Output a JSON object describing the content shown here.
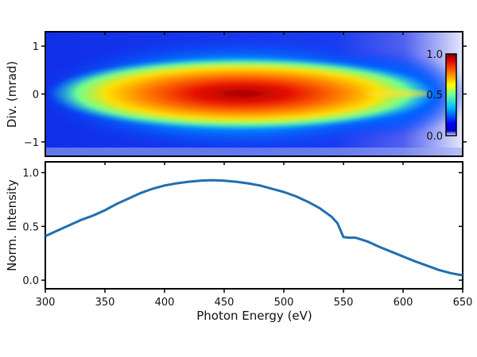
{
  "chart_data": [
    {
      "type": "heatmap",
      "title": "",
      "xlabel": "",
      "ylabel": "Div. (mrad)",
      "xlim": [
        300,
        650
      ],
      "ylim": [
        -1.3,
        1.3
      ],
      "yticks": [
        1,
        0,
        -1
      ],
      "ytick_labels": [
        "1",
        "0",
        "−1"
      ],
      "colormap": "jet",
      "colorbar": {
        "range": [
          0.0,
          1.0
        ],
        "ticks": [
          "1.0",
          "0.5",
          "0.0"
        ],
        "placement": "inside-right"
      },
      "description_values": {
        "peak_energy_eV": 440,
        "edge_energy_eV": 545
      }
    },
    {
      "type": "line",
      "title": "",
      "xlabel": "Photon Energy (eV)",
      "ylabel": "Norm. Intensity",
      "xlim": [
        300,
        650
      ],
      "ylim": [
        -0.08,
        1.1
      ],
      "xticks": [
        "300",
        "350",
        "400",
        "450",
        "500",
        "550",
        "600",
        "650"
      ],
      "yticks": [
        "1.0",
        "0.5",
        "0.0"
      ],
      "color": "#1f6fb0",
      "series": [
        {
          "name": "Norm. Intensity",
          "x": [
            300,
            310,
            320,
            330,
            340,
            350,
            360,
            370,
            380,
            390,
            400,
            410,
            420,
            430,
            440,
            450,
            460,
            470,
            480,
            490,
            500,
            510,
            520,
            530,
            540,
            545,
            550,
            555,
            560,
            570,
            580,
            590,
            600,
            610,
            620,
            630,
            640,
            650
          ],
          "values": [
            0.41,
            0.46,
            0.51,
            0.56,
            0.6,
            0.65,
            0.71,
            0.76,
            0.81,
            0.85,
            0.88,
            0.9,
            0.915,
            0.925,
            0.93,
            0.925,
            0.915,
            0.9,
            0.88,
            0.85,
            0.82,
            0.78,
            0.73,
            0.67,
            0.59,
            0.53,
            0.4,
            0.395,
            0.395,
            0.36,
            0.31,
            0.265,
            0.22,
            0.175,
            0.135,
            0.095,
            0.065,
            0.045
          ]
        }
      ]
    }
  ]
}
